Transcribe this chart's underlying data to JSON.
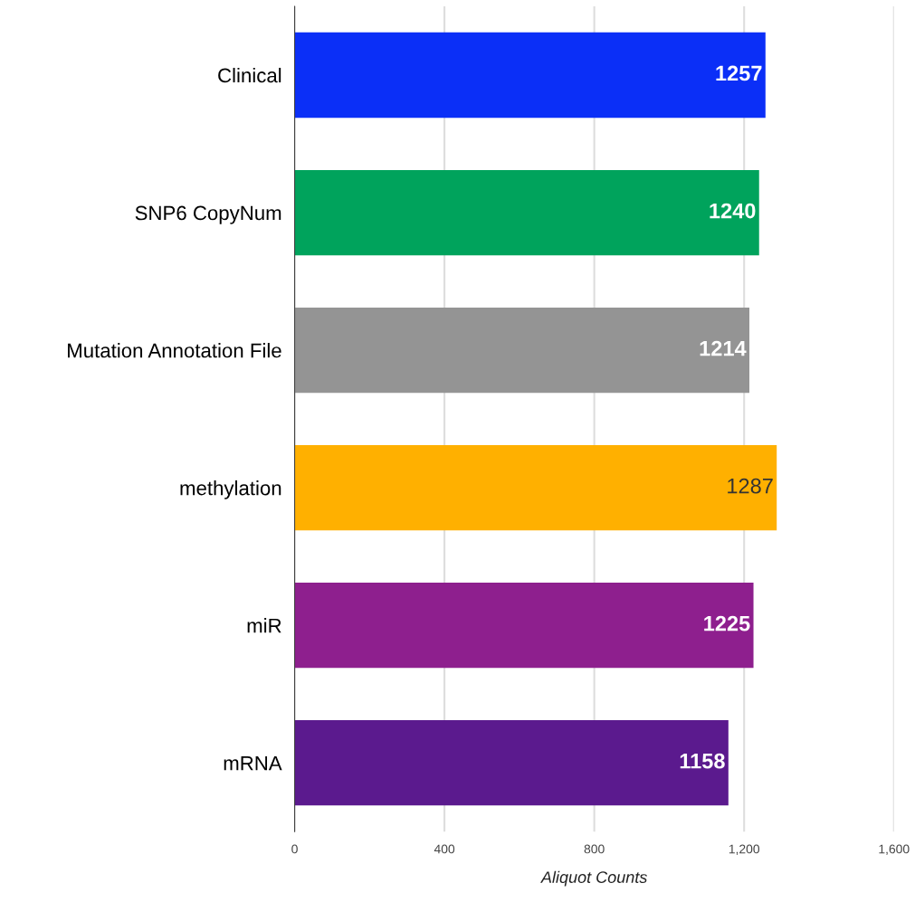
{
  "chart_data": {
    "type": "bar",
    "orientation": "horizontal",
    "categories": [
      "Clinical",
      "SNP6 CopyNum",
      "Mutation Annotation File",
      "methylation",
      "miR",
      "mRNA"
    ],
    "values": [
      1257,
      1240,
      1214,
      1287,
      1225,
      1158
    ],
    "colors": [
      "#0b2ff7",
      "#00a35c",
      "#949494",
      "#ffb000",
      "#8e1f8e",
      "#5b1a8e"
    ],
    "xlabel": "Aliquot Counts",
    "xlim": [
      0,
      1600
    ],
    "xticks": [
      0,
      400,
      800,
      {
        "value": 1200,
        "label": "1,200"
      },
      {
        "value": 1600,
        "label": "1,600"
      }
    ],
    "grid": "x",
    "data_labels": true
  }
}
